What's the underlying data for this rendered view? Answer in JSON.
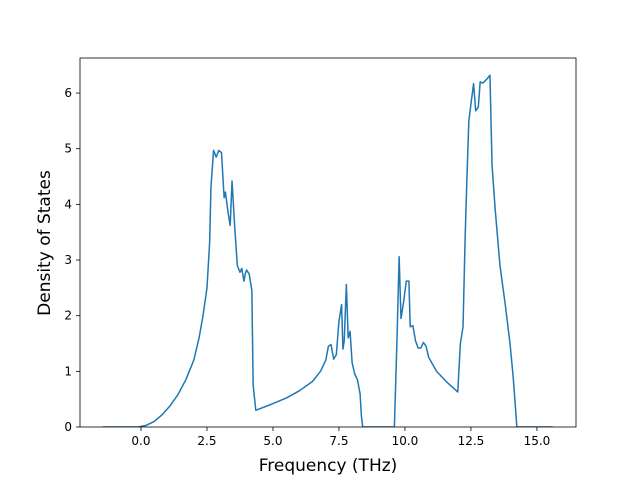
{
  "chart_data": {
    "type": "line",
    "xlabel": "Frequency (THz)",
    "ylabel": "Density of States",
    "x": [
      -1.45,
      -0.1,
      0.2,
      0.5,
      0.8,
      1.1,
      1.4,
      1.7,
      2.0,
      2.2,
      2.35,
      2.5,
      2.6,
      2.65,
      2.75,
      2.85,
      2.95,
      3.05,
      3.15,
      3.2,
      3.3,
      3.38,
      3.45,
      3.55,
      3.65,
      3.75,
      3.82,
      3.9,
      3.95,
      4.0,
      4.1,
      4.2,
      4.25,
      4.35,
      5.0,
      5.5,
      6.0,
      6.5,
      6.8,
      7.0,
      7.1,
      7.2,
      7.3,
      7.4,
      7.5,
      7.6,
      7.65,
      7.7,
      7.78,
      7.85,
      7.92,
      8.0,
      8.1,
      8.2,
      8.3,
      8.35,
      8.4,
      9.6,
      9.7,
      9.78,
      9.85,
      9.95,
      10.05,
      10.15,
      10.2,
      10.3,
      10.4,
      10.5,
      10.6,
      10.7,
      10.8,
      10.9,
      11.2,
      11.6,
      12.0,
      12.1,
      12.2,
      12.28,
      12.35,
      12.42,
      12.5,
      12.6,
      12.68,
      12.78,
      12.85,
      12.95,
      13.1,
      13.22,
      13.3,
      13.42,
      13.6,
      13.8,
      13.98,
      14.1,
      14.24,
      15.6
    ],
    "series": [
      {
        "color": "#1f77b4",
        "values": [
          0,
          0,
          0.03,
          0.1,
          0.22,
          0.38,
          0.58,
          0.85,
          1.2,
          1.6,
          2.0,
          2.5,
          3.3,
          4.3,
          4.97,
          4.85,
          4.97,
          4.93,
          4.12,
          4.22,
          3.85,
          3.62,
          4.42,
          3.6,
          2.9,
          2.78,
          2.85,
          2.62,
          2.75,
          2.82,
          2.75,
          2.45,
          0.75,
          0.3,
          0.42,
          0.52,
          0.65,
          0.82,
          1.0,
          1.2,
          1.45,
          1.48,
          1.22,
          1.3,
          1.9,
          2.2,
          1.4,
          1.55,
          2.56,
          1.6,
          1.72,
          1.15,
          0.95,
          0.85,
          0.6,
          0.2,
          0,
          0,
          1.6,
          3.06,
          1.95,
          2.25,
          2.62,
          2.62,
          1.8,
          1.82,
          1.55,
          1.42,
          1.42,
          1.52,
          1.45,
          1.25,
          1.0,
          0.8,
          0.63,
          1.5,
          1.8,
          3.4,
          4.5,
          5.5,
          5.8,
          6.17,
          5.68,
          5.75,
          6.2,
          6.18,
          6.25,
          6.32,
          4.7,
          3.9,
          2.9,
          2.2,
          1.5,
          0.9,
          0,
          0
        ]
      }
    ],
    "xlim": [
      -2.31,
      16.48
    ],
    "ylim": [
      0,
      6.63
    ],
    "xticks": [
      {
        "value": 0,
        "label": "0.0"
      },
      {
        "value": 2.5,
        "label": "2.5"
      },
      {
        "value": 5,
        "label": "5.0"
      },
      {
        "value": 7.5,
        "label": "7.5"
      },
      {
        "value": 10,
        "label": "10.0"
      },
      {
        "value": 12.5,
        "label": "12.5"
      },
      {
        "value": 15,
        "label": "15.0"
      }
    ],
    "yticks": [
      0,
      1,
      2,
      3,
      4,
      5,
      6
    ]
  }
}
